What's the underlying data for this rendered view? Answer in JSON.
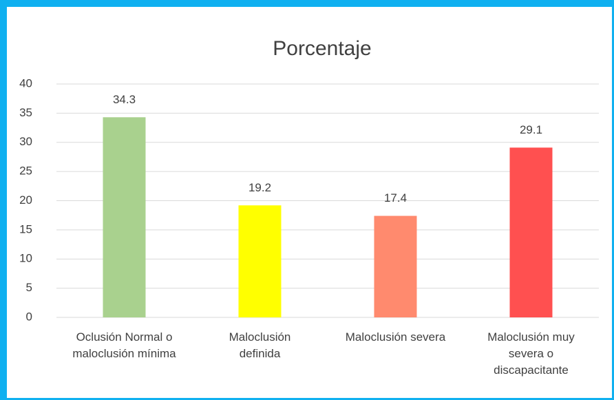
{
  "chart_data": {
    "type": "bar",
    "title": "Porcentaje",
    "categories": [
      "Oclusión Normal o\nmaloclusión mínima",
      "Maloclusión\ndefinida",
      "Maloclusión severa",
      "Maloclusión  muy\nsevera o\ndiscapacitante"
    ],
    "values": [
      34.3,
      19.2,
      17.4,
      29.1
    ],
    "colors": [
      "#a9d18e",
      "#ffff00",
      "#ff8a6e",
      "#ff5050"
    ],
    "ylim": [
      0,
      40
    ],
    "yticks": [
      0,
      5,
      10,
      15,
      20,
      25,
      30,
      35,
      40
    ],
    "grid": true
  }
}
